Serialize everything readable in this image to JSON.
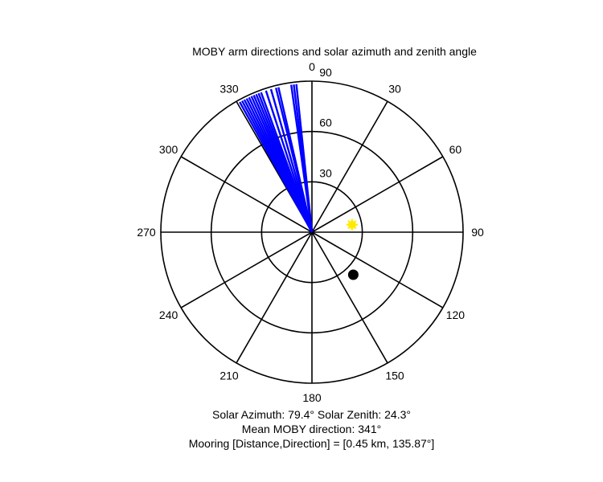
{
  "chart_data": {
    "type": "polar",
    "title": "MOBY arm directions and solar azimuth and zenith angle",
    "angle_ticks": [
      0,
      30,
      60,
      90,
      120,
      150,
      180,
      210,
      240,
      270,
      300,
      330
    ],
    "radial_ticks": [
      30,
      60,
      90
    ],
    "radial_max": 90,
    "orientation": "clockwise from north",
    "arm_directions": [
      331,
      332,
      333,
      334,
      335,
      336,
      337,
      338,
      339,
      340,
      342,
      344,
      346,
      347,
      352,
      353,
      354
    ],
    "arm_color": "#0000ff",
    "sun_marker": {
      "azimuth": 79.4,
      "zenith": 24.3,
      "color": "#ffea00"
    },
    "mooring_marker": {
      "direction": 135.87,
      "color": "#000000"
    },
    "colors": {
      "axes": "#000000",
      "background": "#ffffff"
    }
  },
  "captions": {
    "solar_line": "Solar Azimuth: 79.4°   Solar Zenith: 24.3°",
    "mean_line": "Mean MOBY direction: 341°",
    "mooring_line": "Mooring [Distance,Direction] = [0.45 km, 135.87°]"
  }
}
